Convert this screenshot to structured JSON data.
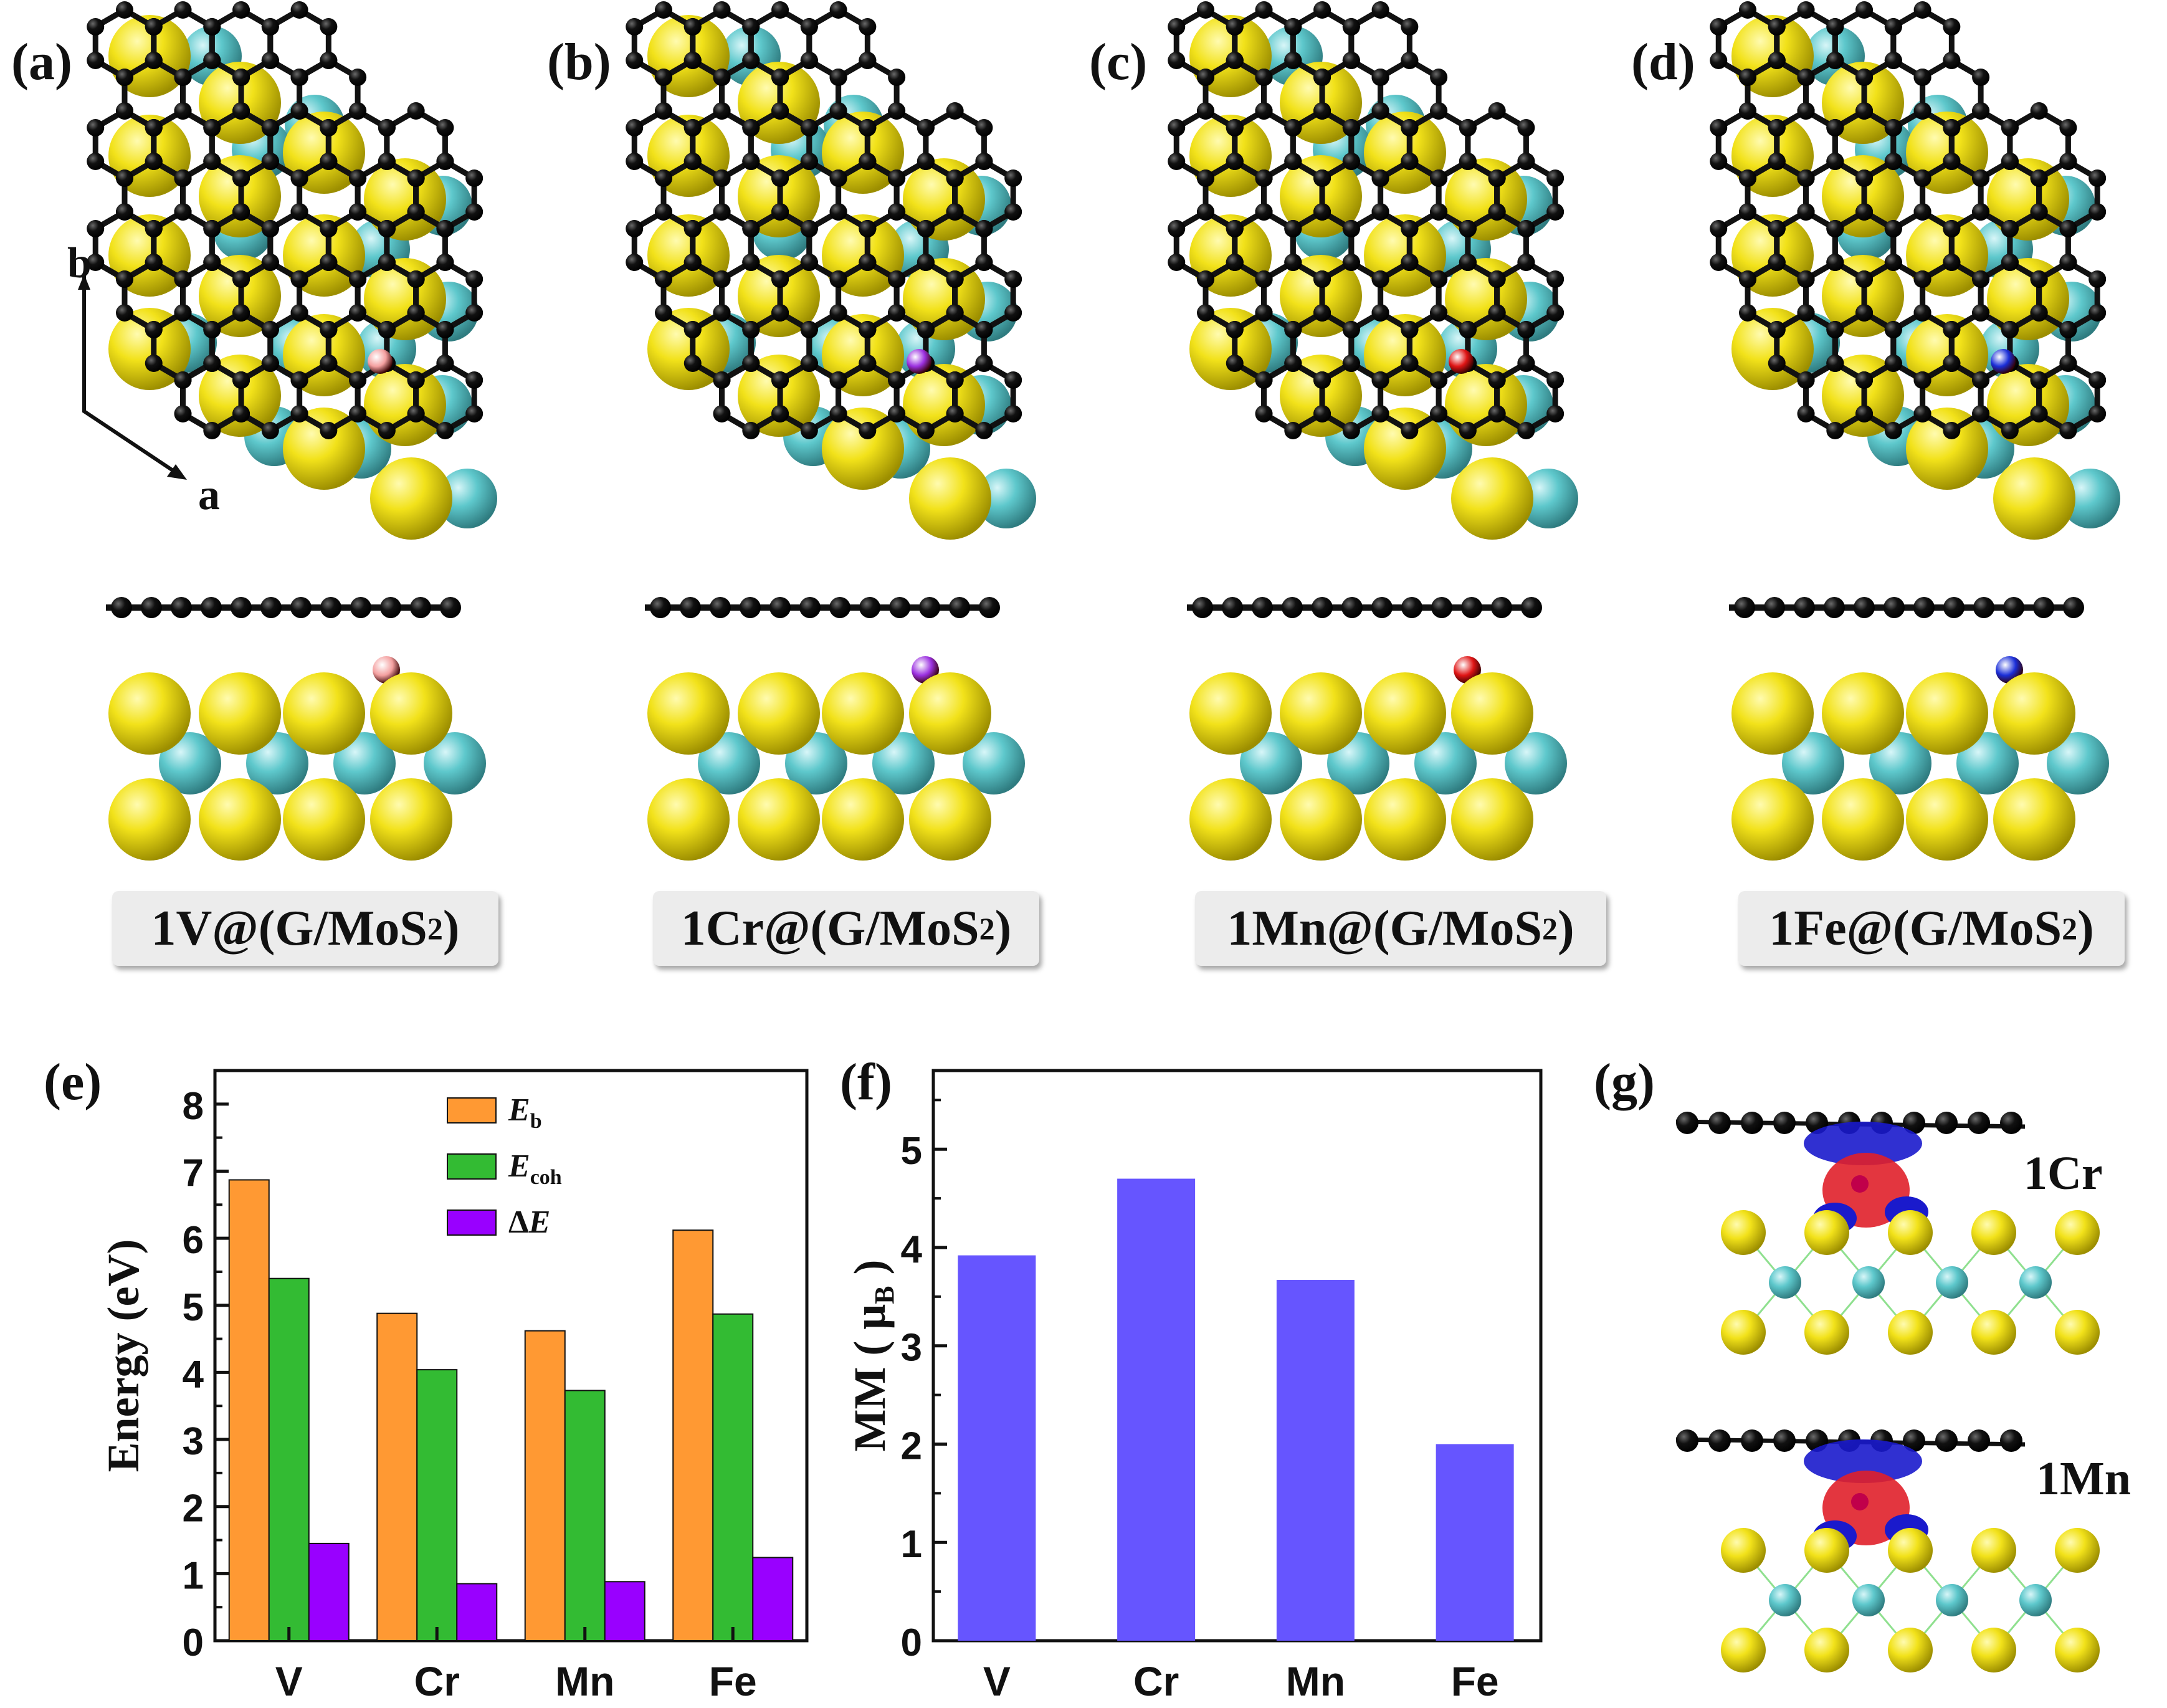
{
  "panels": {
    "a": {
      "tag": "(a)",
      "caption_pre": "1V@(G/MoS",
      "caption_sub": "2",
      "caption_post": ")",
      "dopant_color": "#f4a0a0"
    },
    "b": {
      "tag": "(b)",
      "caption_pre": "1Cr@(G/MoS",
      "caption_sub": "2",
      "caption_post": ")",
      "dopant_color": "#9b30e0"
    },
    "c": {
      "tag": "(c)",
      "caption_pre": "1Mn@(G/MoS",
      "caption_sub": "2",
      "caption_post": ")",
      "dopant_color": "#e01515"
    },
    "d": {
      "tag": "(d)",
      "caption_pre": "1Fe@(G/MoS",
      "caption_sub": "2",
      "caption_post": ")",
      "dopant_color": "#1a2ed8"
    },
    "e": {
      "tag": "(e)"
    },
    "f": {
      "tag": "(f)"
    },
    "g": {
      "tag": "(g)",
      "label_top": "1Cr",
      "label_bottom": "1Mn"
    }
  },
  "axes_labels": {
    "b": "b",
    "a": "a"
  },
  "colors": {
    "s_atom": "#f2e21a",
    "mo_atom": "#5ec8cc",
    "c_atom": "#111111",
    "eb": "#ff9933",
    "ecoh": "#33bb33",
    "de": "#9900ff",
    "mm": "#6655ff",
    "density_pos": "#e0202a",
    "density_neg": "#1a1acc"
  },
  "chart_data": [
    {
      "type": "bar",
      "panel": "e",
      "categories": [
        "V",
        "Cr",
        "Mn",
        "Fe"
      ],
      "series": [
        {
          "name": "E_b",
          "legend_main": "E",
          "legend_sub": "b",
          "values": [
            6.87,
            4.88,
            4.62,
            6.12
          ]
        },
        {
          "name": "E_coh",
          "legend_main": "E",
          "legend_sub": "coh",
          "values": [
            5.4,
            4.04,
            3.73,
            4.87
          ]
        },
        {
          "name": "ΔE",
          "legend_main": "ΔE",
          "legend_sub": "",
          "values": [
            1.45,
            0.85,
            0.88,
            1.24
          ]
        }
      ],
      "ylabel": "Energy (eV)",
      "xlabel": "",
      "ylim": [
        0,
        8.5
      ],
      "yticks": [
        "0",
        "1",
        "2",
        "3",
        "4",
        "5",
        "6",
        "7",
        "8"
      ]
    },
    {
      "type": "bar",
      "panel": "f",
      "categories": [
        "V",
        "Cr",
        "Mn",
        "Fe"
      ],
      "values": [
        3.92,
        4.7,
        3.67,
        2.0
      ],
      "ylabel_pre": "MM ( μ",
      "ylabel_sub": "B",
      "ylabel_post": " )",
      "xlabel": "",
      "ylim": [
        0,
        5.8
      ],
      "yticks": [
        "0",
        "1",
        "2",
        "3",
        "4",
        "5"
      ]
    }
  ]
}
